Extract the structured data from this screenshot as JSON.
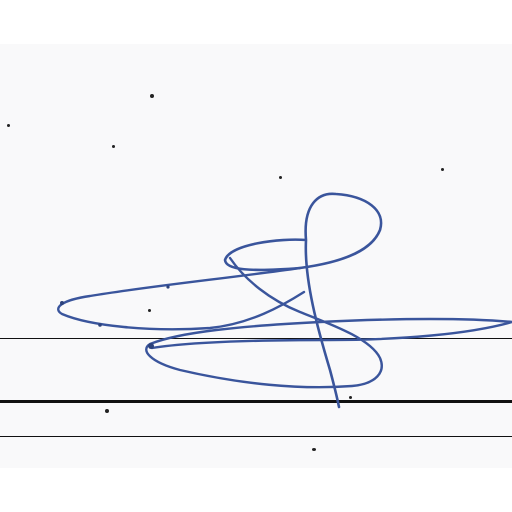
{
  "document": {
    "type": "signature-sample",
    "ink_color": "#3a559c",
    "paper_color": "#f9f9fa",
    "rule_color": "#111111",
    "ruled_lines": 3
  }
}
